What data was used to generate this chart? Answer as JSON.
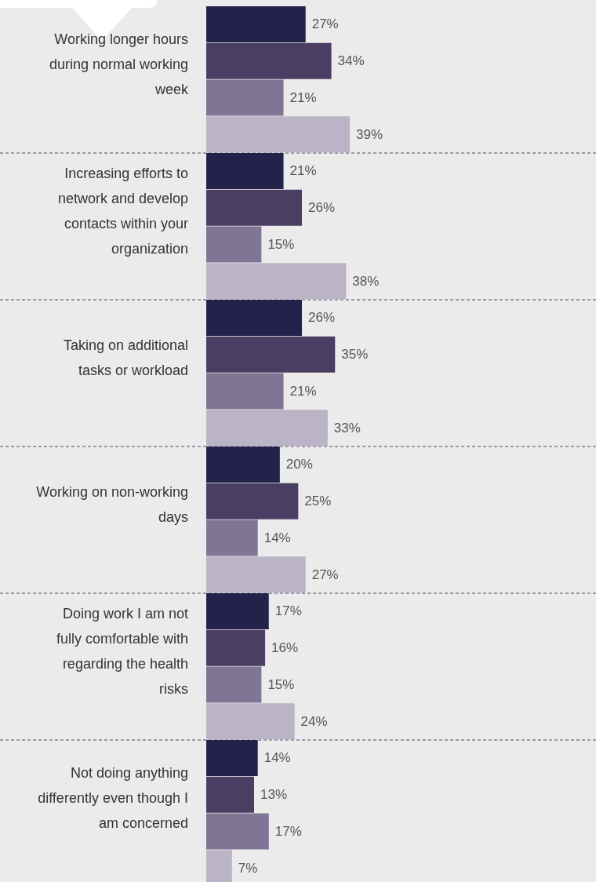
{
  "chart_data": {
    "type": "bar",
    "orientation": "horizontal",
    "categories": [
      "Working longer hours\nduring normal working\nweek",
      "Increasing efforts to\nnetwork and develop\ncontacts within your\norganization",
      "Taking on additional\ntasks or workload",
      "Working on non-working\ndays",
      "Doing work I am not\nfully comfortable with\nregarding the health\nrisks",
      "Not doing anything\ndifferently even though I\nam concerned"
    ],
    "series": [
      {
        "color": "#23224a",
        "values": [
          27,
          21,
          26,
          20,
          17,
          14
        ],
        "value_labels": [
          "27%",
          "21%",
          "26%",
          "20%",
          "17%",
          "14%"
        ]
      },
      {
        "color": "#4a3f63",
        "values": [
          34,
          26,
          35,
          25,
          16,
          13
        ],
        "value_labels": [
          "34%",
          "26%",
          "35%",
          "25%",
          "16%",
          "13%"
        ]
      },
      {
        "color": "#817595",
        "values": [
          21,
          15,
          21,
          14,
          15,
          17
        ],
        "value_labels": [
          "21%",
          "15%",
          "21%",
          "14%",
          "15%",
          "17%"
        ]
      },
      {
        "color": "#bbb3c6",
        "values": [
          39,
          38,
          33,
          27,
          24,
          7
        ],
        "value_labels": [
          "39%",
          "38%",
          "33%",
          "27%",
          "24%",
          "7%"
        ]
      }
    ]
  }
}
